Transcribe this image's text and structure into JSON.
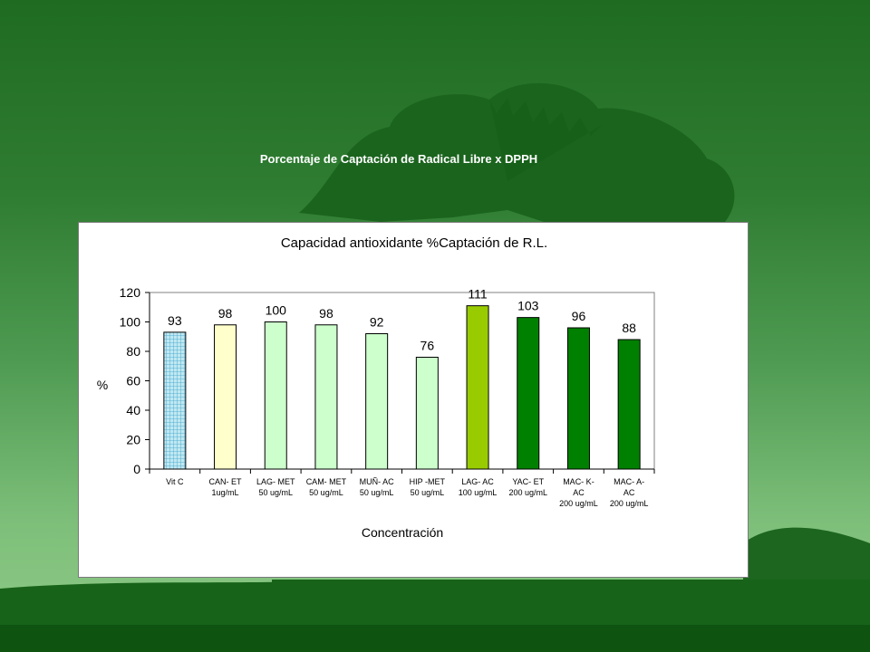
{
  "slide": {
    "title": "Porcentaje de Captación de Radical Libre  x DPPH"
  },
  "colors": {
    "vitc": "#bfe8f2",
    "pale_yellow": "#ffffcc",
    "pale_green": "#ccffcc",
    "lime": "#99cc00",
    "dark_green": "#008000",
    "frame_bg": "#ffffff"
  },
  "chart_data": {
    "type": "bar",
    "title": "Capacidad antioxidante %Captación de R.L.",
    "xlabel": "Concentración",
    "ylabel": "%",
    "ylim": [
      0,
      120
    ],
    "yticks": [
      0,
      20,
      40,
      60,
      80,
      100,
      120
    ],
    "grid": false,
    "legend": "none",
    "categories": [
      [
        "Vit C"
      ],
      [
        "CAN- ET",
        "1ug/mL"
      ],
      [
        "LAG- MET",
        "50 ug/mL"
      ],
      [
        "CAM- MET",
        "50 ug/mL"
      ],
      [
        "MUÑ- AC",
        "50 ug/mL"
      ],
      [
        "HIP -MET",
        "50 ug/mL"
      ],
      [
        "LAG- AC",
        "100 ug/mL"
      ],
      [
        "YAC- ET",
        "200 ug/mL"
      ],
      [
        "MAC- K-",
        "AC",
        "200 ug/mL"
      ],
      [
        "MAC- A-",
        "AC",
        "200 ug/mL"
      ]
    ],
    "values": [
      93,
      98,
      100,
      98,
      92,
      76,
      111,
      103,
      96,
      88
    ],
    "data_labels": [
      "93",
      "98",
      "100",
      "98",
      "92",
      "76",
      "111",
      "103",
      "96",
      "88"
    ],
    "bar_colors": [
      "vitc",
      "pale_yellow",
      "pale_green",
      "pale_green",
      "pale_green",
      "pale_green",
      "lime",
      "dark_green",
      "dark_green",
      "dark_green"
    ]
  }
}
